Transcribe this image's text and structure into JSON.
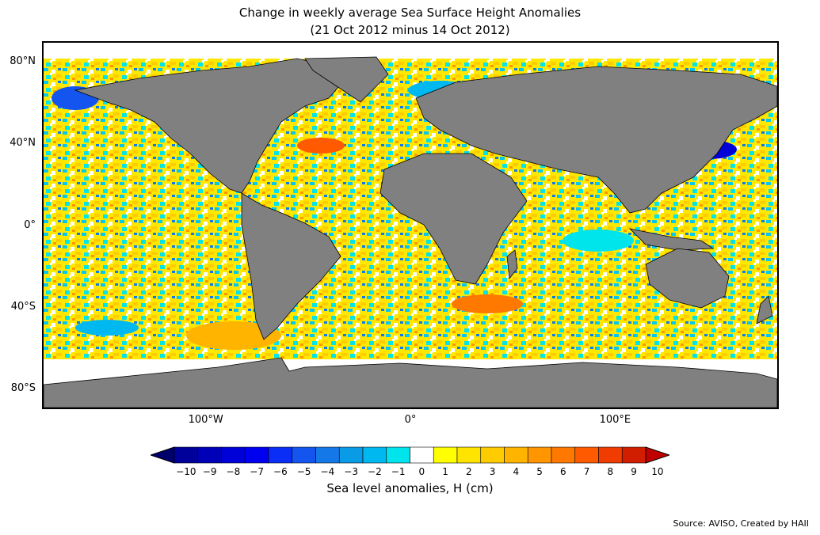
{
  "title_line1": "Change in weekly average Sea Surface Height Anomalies",
  "title_line2": "(21 Oct 2012 minus 14 Oct 2012)",
  "lat_ticks": [
    {
      "label": "80°N",
      "value": 80
    },
    {
      "label": "40°N",
      "value": 40
    },
    {
      "label": "0°",
      "value": 0
    },
    {
      "label": "40°S",
      "value": -40
    },
    {
      "label": "80°S",
      "value": -80
    }
  ],
  "lon_ticks": [
    {
      "label": "100°W",
      "value": -100
    },
    {
      "label": "0°",
      "value": 0
    },
    {
      "label": "100°E",
      "value": 100
    }
  ],
  "map_extent": {
    "lon": [
      -180,
      180
    ],
    "lat": [
      -90,
      90
    ]
  },
  "colors": {
    "land": "#808080",
    "ocean_no_change": "#ffffff",
    "frame": "#000000"
  },
  "colorbar": {
    "label": "Sea level anomalies, H (cm)",
    "ticks": [
      "−10",
      "−9",
      "−8",
      "−7",
      "−6",
      "−5",
      "−4",
      "−3",
      "−2",
      "−1",
      "0",
      "1",
      "2",
      "3",
      "4",
      "5",
      "6",
      "7",
      "8",
      "9",
      "10"
    ],
    "min": -10,
    "max": 10,
    "extend": "both",
    "colors": [
      "#00006a",
      "#00009a",
      "#0000b8",
      "#0000d8",
      "#0000f0",
      "#0a2ef5",
      "#1455f0",
      "#1478e8",
      "#0a9be6",
      "#00b8f0",
      "#00e4ec",
      "#ffffff",
      "#ffff00",
      "#ffe400",
      "#ffcc00",
      "#ffb400",
      "#ff9600",
      "#ff7800",
      "#ff5a00",
      "#f03c00",
      "#d21e00",
      "#c00000"
    ]
  },
  "source": "Source: AVISO, Created by HAII"
}
